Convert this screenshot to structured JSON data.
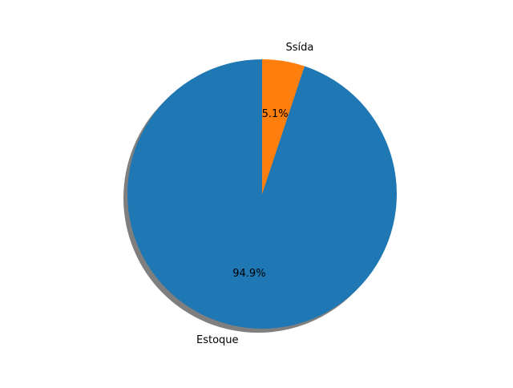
{
  "chart_data": {
    "type": "pie",
    "slices": [
      {
        "label": "Estoque",
        "value": 94.9,
        "pct_label": "94.9%",
        "color": "#1f77b4"
      },
      {
        "label": "Ssída",
        "value": 5.1,
        "pct_label": "5.1%",
        "color": "#ff7f0e"
      }
    ],
    "start_angle": 90,
    "direction": "counterclockwise",
    "shadow": true,
    "title": "",
    "legend": "none"
  }
}
